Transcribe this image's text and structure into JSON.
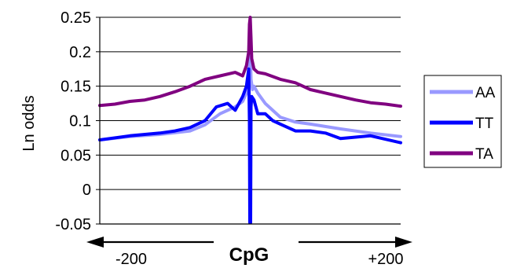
{
  "chart_data": {
    "type": "line",
    "xlabel": "CpG",
    "ylabel": "Ln odds",
    "ylim": [
      -0.05,
      0.25
    ],
    "yticks": [
      "0.25",
      "0.2",
      "0.15",
      "0.1",
      "0.05",
      "0",
      "-0.05"
    ],
    "xlim": [
      -200,
      200
    ],
    "xticks": [
      "-200",
      "+200"
    ],
    "grid": "horizontal",
    "legend_position": "right",
    "series": [
      {
        "name": "AA",
        "color": "#9999ff",
        "x": [
          -200,
          -160,
          -120,
          -80,
          -60,
          -40,
          -20,
          -10,
          -5,
          -3,
          -1,
          0,
          1,
          3,
          5,
          10,
          20,
          40,
          60,
          80,
          120,
          160,
          200
        ],
        "values": [
          0.072,
          0.077,
          0.08,
          0.085,
          0.094,
          0.11,
          0.12,
          0.128,
          0.14,
          0.155,
          0.19,
          0.205,
          0.16,
          0.145,
          0.15,
          0.14,
          0.125,
          0.105,
          0.098,
          0.095,
          0.088,
          0.082,
          0.077
        ]
      },
      {
        "name": "TT",
        "color": "#0000ff",
        "x": [
          -200,
          -160,
          -120,
          -100,
          -80,
          -60,
          -45,
          -30,
          -20,
          -10,
          -5,
          -2,
          -1,
          -0.5,
          0,
          0.5,
          1,
          2,
          5,
          10,
          20,
          30,
          40,
          60,
          80,
          100,
          120,
          140,
          160,
          200
        ],
        "values": [
          0.072,
          0.078,
          0.082,
          0.085,
          0.09,
          0.1,
          0.12,
          0.125,
          0.115,
          0.135,
          0.15,
          0.175,
          0.1,
          -0.048,
          0.07,
          -0.048,
          0.12,
          0.135,
          0.13,
          0.11,
          0.11,
          0.1,
          0.095,
          0.085,
          0.085,
          0.082,
          0.074,
          0.076,
          0.078,
          0.068
        ]
      },
      {
        "name": "TA",
        "color": "#800080",
        "x": [
          -200,
          -180,
          -160,
          -140,
          -120,
          -100,
          -80,
          -60,
          -40,
          -20,
          -10,
          -5,
          -2,
          -1,
          0,
          1,
          2,
          5,
          10,
          20,
          40,
          60,
          80,
          100,
          120,
          140,
          160,
          180,
          200
        ],
        "values": [
          0.122,
          0.124,
          0.128,
          0.13,
          0.135,
          0.142,
          0.15,
          0.16,
          0.165,
          0.17,
          0.165,
          0.18,
          0.2,
          0.24,
          0.25,
          0.22,
          0.19,
          0.175,
          0.17,
          0.168,
          0.16,
          0.155,
          0.145,
          0.14,
          0.135,
          0.13,
          0.126,
          0.124,
          0.121
        ]
      }
    ]
  }
}
